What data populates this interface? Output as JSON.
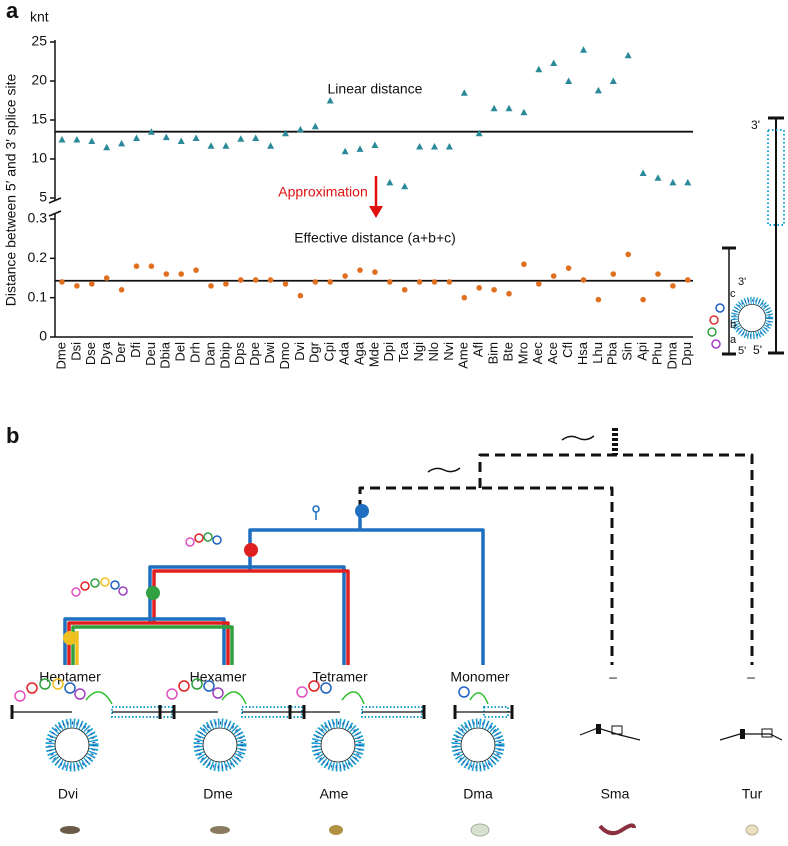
{
  "panel_labels": [
    "a",
    "b"
  ],
  "chart_data": {
    "type": "scatter",
    "ylabel": "Distance between 5′ and 3′ splice site",
    "yunit": "knt",
    "annotation": "Approximation",
    "categories": [
      "Dme",
      "Dsi",
      "Dse",
      "Dya",
      "Der",
      "Dfi",
      "Deu",
      "Dbia",
      "Del",
      "Drh",
      "Dan",
      "Dbip",
      "Dps",
      "Dpe",
      "Dwi",
      "Dmo",
      "Dvi",
      "Dgr",
      "Cpi",
      "Ada",
      "Aga",
      "Mde",
      "Dpi",
      "Tca",
      "Ngi",
      "Nlo",
      "Nvi",
      "Ame",
      "Afl",
      "Bim",
      "Bte",
      "Mro",
      "Aec",
      "Ace",
      "Cfl",
      "Hsa",
      "Lhu",
      "Pba",
      "Sin",
      "Api",
      "Phu",
      "Dma",
      "Dpu"
    ],
    "series": [
      {
        "name": "Linear distance",
        "color": "#2a8a9a",
        "marker": "triangle",
        "line": 13.5,
        "values": [
          12.5,
          12.5,
          12.3,
          11.5,
          12,
          12.7,
          13.5,
          12.8,
          12.3,
          12.7,
          11.7,
          11.7,
          12.6,
          12.7,
          11.7,
          13.3,
          13.8,
          14.2,
          17.5,
          11,
          11.3,
          11.8,
          7,
          6.5,
          11.6,
          11.6,
          11.6,
          18.5,
          13.3,
          16.5,
          16.5,
          16,
          21.5,
          22.3,
          20,
          24,
          18.8,
          20,
          23.3,
          8.2,
          7.6,
          7,
          7
        ]
      },
      {
        "name": "Effective distance (a+b+c)",
        "color": "#e07020",
        "marker": "circle",
        "line": 0.143,
        "axis": "y2",
        "values": [
          0.14,
          0.13,
          0.135,
          0.15,
          0.12,
          0.18,
          0.18,
          0.16,
          0.16,
          0.17,
          0.13,
          0.135,
          0.145,
          0.145,
          0.145,
          0.135,
          0.105,
          0.14,
          0.14,
          0.155,
          0.17,
          0.165,
          0.14,
          0.12,
          0.14,
          0.14,
          0.14,
          0.1,
          0.125,
          0.12,
          0.11,
          0.185,
          0.135,
          0.155,
          0.175,
          0.145,
          0.095,
          0.16,
          0.21,
          0.095,
          0.16,
          0.13,
          0.145
        ]
      }
    ],
    "ylim": [
      5,
      25
    ],
    "yticks": [
      5,
      10,
      15,
      20,
      25
    ],
    "y2lim": [
      0,
      0.3
    ],
    "y2ticks": [
      0,
      0.1,
      0.2,
      0.3
    ]
  },
  "inset_labels": {
    "long": [
      "3'",
      "5'"
    ],
    "short": [
      "3'",
      "5'",
      "a",
      "b",
      "c"
    ]
  },
  "tree": {
    "groups": [
      "Heptamer",
      "Hexamer",
      "Tetramer",
      "Monomer",
      "–",
      "–"
    ],
    "species": [
      "Dvi",
      "Dme",
      "Ame",
      "Dma",
      "Sma",
      "Tur"
    ]
  }
}
